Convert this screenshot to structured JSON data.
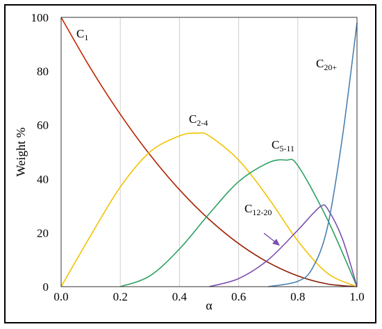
{
  "chart_data": {
    "type": "line",
    "title": "",
    "xlabel": "α",
    "ylabel": "Weight %",
    "xlim": [
      0.0,
      1.0
    ],
    "ylim": [
      0,
      100
    ],
    "x_ticks": [
      "0.0",
      "0.2",
      "0.4",
      "0.6",
      "0.8",
      "1.0"
    ],
    "y_ticks": [
      "0",
      "20",
      "40",
      "60",
      "80",
      "100"
    ],
    "grid": "vertical",
    "series": [
      {
        "name": "C1",
        "label_main": "C",
        "label_sub": "1",
        "color": "#cc2200",
        "color_end": "#7a1a00",
        "x": [
          0.0,
          0.1,
          0.2,
          0.3,
          0.4,
          0.5,
          0.6,
          0.7,
          0.8,
          0.9,
          1.0
        ],
        "y": [
          100,
          81,
          64,
          49,
          36,
          25,
          16,
          9,
          4,
          1,
          0
        ]
      },
      {
        "name": "C2-4",
        "label_main": "C",
        "label_sub": "2-4",
        "color": "#f2c200",
        "x": [
          0.0,
          0.1,
          0.2,
          0.3,
          0.4,
          0.46,
          0.5,
          0.6,
          0.7,
          0.8,
          0.9,
          1.0
        ],
        "y": [
          0,
          19,
          37,
          50,
          56,
          57,
          56,
          47,
          33,
          17,
          5,
          0
        ]
      },
      {
        "name": "C5-11",
        "label_main": "C",
        "label_sub": "5-11",
        "color": "#2aa060",
        "x": [
          0.2,
          0.3,
          0.4,
          0.5,
          0.6,
          0.7,
          0.76,
          0.8,
          0.9,
          1.0
        ],
        "y": [
          0,
          4,
          14,
          27,
          39,
          46,
          47,
          45,
          25,
          0
        ]
      },
      {
        "name": "C12-20",
        "label_main": "C",
        "label_sub": "12-20",
        "color": "#7a4fb0",
        "x": [
          0.5,
          0.6,
          0.7,
          0.8,
          0.85,
          0.88,
          0.9,
          0.95,
          1.0
        ],
        "y": [
          0,
          3,
          10,
          21,
          27,
          30,
          29,
          18,
          0
        ]
      },
      {
        "name": "C20+",
        "label_main": "C",
        "label_sub": "20+",
        "color": "#4a80b0",
        "x": [
          0.7,
          0.8,
          0.85,
          0.9,
          0.95,
          1.0
        ],
        "y": [
          0,
          2,
          7,
          22,
          55,
          98
        ]
      }
    ]
  }
}
